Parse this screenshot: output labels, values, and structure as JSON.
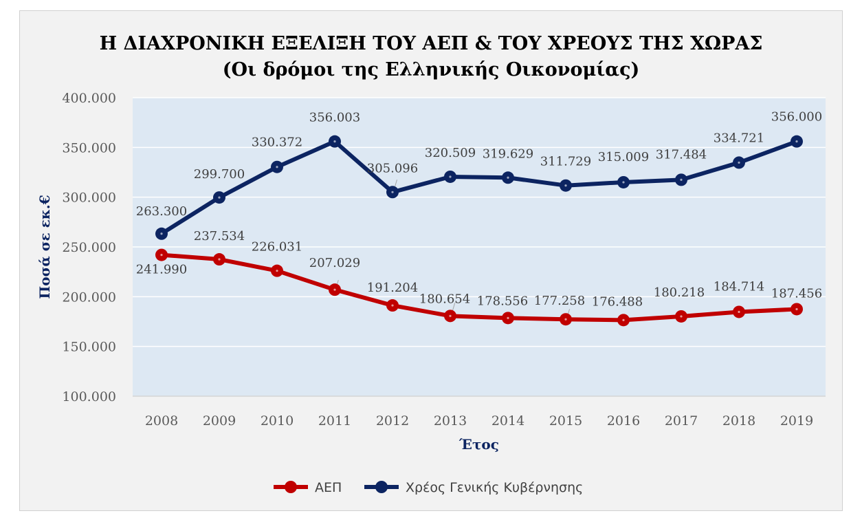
{
  "chart_data": {
    "type": "line",
    "title": "Η ΔΙΑΧΡΟΝΙΚΗ ΕΞΕΛΙΞΗ ΤΟΥ ΑΕΠ & ΤΟΥ ΧΡΕΟΥΣ ΤΗΣ ΧΩΡΑΣ",
    "subtitle": "(Οι δρόμοι της Ελληνικής Οικονομίας)",
    "xlabel": "Έτος",
    "ylabel": "Ποσά σε εκ.€",
    "ylim": [
      100000,
      400000
    ],
    "yticks": [
      100000,
      150000,
      200000,
      250000,
      300000,
      350000,
      400000
    ],
    "ytick_labels": [
      "100.000",
      "150.000",
      "200.000",
      "250.000",
      "300.000",
      "350.000",
      "400.000"
    ],
    "categories": [
      "2008",
      "2009",
      "2010",
      "2011",
      "2012",
      "2013",
      "2014",
      "2015",
      "2016",
      "2017",
      "2018",
      "2019"
    ],
    "grid": true,
    "legend_position": "bottom",
    "series": [
      {
        "name": "ΑΕΠ",
        "color": "#c00000",
        "values": [
          241990,
          237534,
          226031,
          207029,
          191204,
          180654,
          178556,
          177258,
          176488,
          180218,
          184714,
          187456
        ],
        "labels": [
          "241.990",
          "237.534",
          "226.031",
          "207.029",
          "191.204",
          "180.654",
          "178.556",
          "177.258",
          "176.488",
          "180.218",
          "184.714",
          "187.456"
        ]
      },
      {
        "name": "Χρέος Γενικής Κυβέρνησης",
        "color": "#0c2461",
        "values": [
          263300,
          299700,
          330372,
          356003,
          305096,
          320509,
          319629,
          311729,
          315009,
          317484,
          334721,
          356000
        ],
        "labels": [
          "263.300",
          "299.700",
          "330.372",
          "356.003",
          "305.096",
          "320.509",
          "319.629",
          "311.729",
          "315.009",
          "317.484",
          "334.721",
          "356.000"
        ]
      }
    ],
    "plot_background": "#dde8f3",
    "axis_title_color": "#0c2461"
  }
}
